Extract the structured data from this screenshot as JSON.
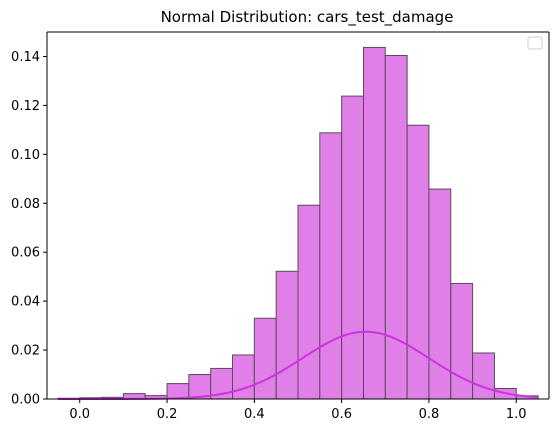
{
  "chart_data": {
    "type": "bar",
    "title": "Normal Distribution: cars_test_damage",
    "xlabel": "",
    "ylabel": "",
    "xlim": [
      -0.075,
      1.075
    ],
    "ylim": [
      0,
      0.15
    ],
    "x_ticks": [
      0.0,
      0.2,
      0.4,
      0.6,
      0.8,
      1.0
    ],
    "x_tick_labels": [
      "0.0",
      "0.2",
      "0.4",
      "0.6",
      "0.8",
      "1.0"
    ],
    "y_ticks": [
      0.0,
      0.02,
      0.04,
      0.06,
      0.08,
      0.1,
      0.12,
      0.14
    ],
    "y_tick_labels": [
      "0.00",
      "0.02",
      "0.04",
      "0.06",
      "0.08",
      "0.10",
      "0.12",
      "0.14"
    ],
    "grid": false,
    "legend": {
      "placement": "top-right",
      "entries": []
    },
    "histogram": {
      "bin_edges": [
        -0.05,
        0.0,
        0.05,
        0.1,
        0.15,
        0.2,
        0.25,
        0.3,
        0.35,
        0.4,
        0.45,
        0.5,
        0.55,
        0.6,
        0.65,
        0.7,
        0.75,
        0.8,
        0.85,
        0.9,
        0.95,
        1.0,
        1.05
      ],
      "values": [
        0.0003,
        0.0005,
        0.0007,
        0.0022,
        0.0014,
        0.0063,
        0.01,
        0.0125,
        0.018,
        0.033,
        0.0522,
        0.0792,
        0.1088,
        0.1238,
        0.1437,
        0.1404,
        0.1119,
        0.0858,
        0.0472,
        0.0188,
        0.0043,
        0.0013
      ],
      "fill_color": "#e07fe8",
      "edge_color": "#5a4a5a"
    },
    "curve": {
      "mean": 0.655,
      "std": 0.145,
      "peak": 0.0275,
      "x_range": [
        -0.05,
        1.05
      ],
      "color": "#cc33dd"
    }
  }
}
